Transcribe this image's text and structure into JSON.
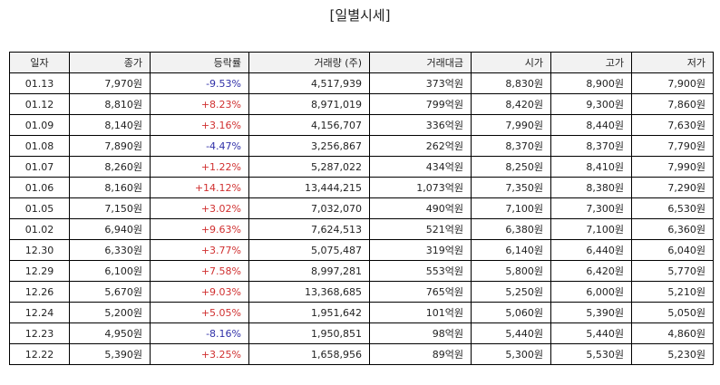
{
  "header": {
    "title": "[일별시세]"
  },
  "table": {
    "columns": [
      "일자",
      "종가",
      "등락률",
      "거래량 (주)",
      "거래대금",
      "시가",
      "고가",
      "저가"
    ],
    "rows": [
      [
        "01.13",
        "7,970원",
        "-9.53%",
        "4,517,939",
        "373억원",
        "8,830원",
        "8,900원",
        "7,900원"
      ],
      [
        "01.12",
        "8,810원",
        "+8.23%",
        "8,971,019",
        "799억원",
        "8,420원",
        "9,300원",
        "7,860원"
      ],
      [
        "01.09",
        "8,140원",
        "+3.16%",
        "4,156,707",
        "336억원",
        "7,990원",
        "8,440원",
        "7,630원"
      ],
      [
        "01.08",
        "7,890원",
        "-4.47%",
        "3,256,867",
        "262억원",
        "8,370원",
        "8,370원",
        "7,790원"
      ],
      [
        "01.07",
        "8,260원",
        "+1.22%",
        "5,287,022",
        "434억원",
        "8,250원",
        "8,410원",
        "7,990원"
      ],
      [
        "01.06",
        "8,160원",
        "+14.12%",
        "13,444,215",
        "1,073억원",
        "7,350원",
        "8,380원",
        "7,290원"
      ],
      [
        "01.05",
        "7,150원",
        "+3.02%",
        "7,032,070",
        "490억원",
        "7,100원",
        "7,300원",
        "6,530원"
      ],
      [
        "01.02",
        "6,940원",
        "+9.63%",
        "7,624,513",
        "521억원",
        "6,380원",
        "7,100원",
        "6,360원"
      ],
      [
        "12.30",
        "6,330원",
        "+3.77%",
        "5,075,487",
        "319억원",
        "6,140원",
        "6,440원",
        "6,040원"
      ],
      [
        "12.29",
        "6,100원",
        "+7.58%",
        "8,997,281",
        "553억원",
        "5,800원",
        "6,420원",
        "5,770원"
      ],
      [
        "12.26",
        "5,670원",
        "+9.03%",
        "13,368,685",
        "765억원",
        "5,250원",
        "6,000원",
        "5,210원"
      ],
      [
        "12.24",
        "5,200원",
        "+5.05%",
        "1,951,642",
        "101억원",
        "5,060원",
        "5,390원",
        "5,050원"
      ],
      [
        "12.23",
        "4,950원",
        "-8.16%",
        "1,950,851",
        "98억원",
        "5,440원",
        "5,440원",
        "4,860원"
      ],
      [
        "12.22",
        "5,390원",
        "+3.25%",
        "1,658,956",
        "89억원",
        "5,300원",
        "5,530원",
        "5,230원"
      ]
    ]
  }
}
